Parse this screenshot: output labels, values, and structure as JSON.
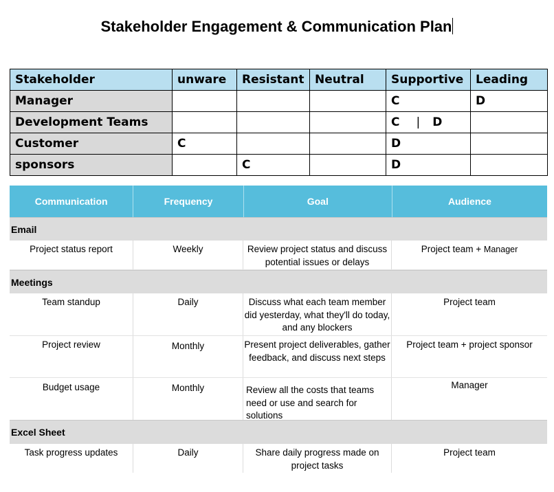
{
  "title": "Stakeholder Engagement & Communication Plan",
  "matrix": {
    "headers": [
      "Stakeholder",
      "unware",
      "Resistant",
      "Neutral",
      "Supportive",
      "Leading"
    ],
    "rows": [
      {
        "name": "Manager",
        "cells": [
          "",
          "",
          "",
          "C",
          "D"
        ]
      },
      {
        "name": "Development Teams",
        "cells": [
          "",
          "",
          "",
          "C",
          ""
        ],
        "supportive_extra": {
          "sep": "|",
          "value": "D"
        }
      },
      {
        "name": "Customer",
        "cells": [
          "C",
          "",
          "",
          "D",
          ""
        ]
      },
      {
        "name": "sponsors",
        "cells": [
          "",
          "C",
          "",
          "D",
          ""
        ]
      }
    ]
  },
  "comm": {
    "headers": [
      "Communication",
      "Frequency",
      "Goal",
      "Audience"
    ],
    "sections": [
      {
        "name": "Email",
        "rows": [
          {
            "communication": "Project status report",
            "frequency": "Weekly",
            "goal": "Review project status and discuss potential issues or delays",
            "audience": "Project team +",
            "audience_extra": "Manager"
          }
        ]
      },
      {
        "name": "Meetings",
        "rows": [
          {
            "communication": "Team standup",
            "frequency": "Daily",
            "goal": "Discuss what each team member did yesterday, what they'll do today, and any blockers",
            "audience": "Project team"
          },
          {
            "communication": "Project review",
            "frequency": "Monthly",
            "goal": "Present project deliverables, gather feedback, and discuss next steps",
            "audience": "Project team + project sponsor"
          },
          {
            "communication": "Budget usage",
            "frequency": "Monthly",
            "goal": "Review all the costs that teams need or use and search for solutions",
            "audience": "Manager"
          }
        ]
      },
      {
        "name": "Excel Sheet",
        "rows": [
          {
            "communication": "Task progress updates",
            "frequency": "Daily",
            "goal": "Share daily progress made on project tasks",
            "audience": "Project team"
          }
        ]
      }
    ]
  }
}
